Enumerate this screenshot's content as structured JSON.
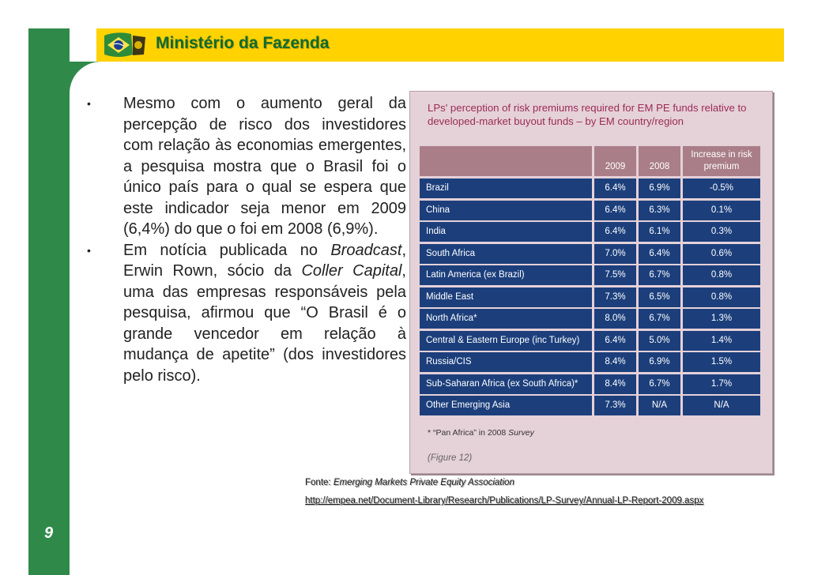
{
  "header": {
    "title": "Ministério da Fazenda"
  },
  "page_number": "9",
  "bullets": [
    {
      "text": "Mesmo com o aumento geral da percepção de risco dos investidores com relação às economias emergentes, a pesquisa mostra que o Brasil foi o único país para o qual se espera que este indicador seja menor em 2009 (6,4%) do que o foi em 2008 (6,9%)."
    },
    {
      "parts": [
        {
          "t": "Em notícia publicada no ",
          "i": false
        },
        {
          "t": "Broadcast",
          "i": true
        },
        {
          "t": ", Erwin Rown, sócio da ",
          "i": false
        },
        {
          "t": "Coller Capital",
          "i": true
        },
        {
          "t": ", uma das empresas responsáveis pela pesquisa, afirmou que “O Brasil é o grande vencedor em relação à mudança de apetite” (dos investidores pelo risco).",
          "i": false
        }
      ]
    }
  ],
  "figure": {
    "title": "LPs' perception of risk premiums required for EM PE funds relative to developed-market buyout funds – by EM country/region",
    "headers": [
      "",
      "2009",
      "2008",
      "Increase in risk premium"
    ],
    "rows": [
      [
        "Brazil",
        "6.4%",
        "6.9%",
        "-0.5%"
      ],
      [
        "China",
        "6.4%",
        "6.3%",
        "0.1%"
      ],
      [
        "India",
        "6.4%",
        "6.1%",
        "0.3%"
      ],
      [
        "South Africa",
        "7.0%",
        "6.4%",
        "0.6%"
      ],
      [
        "Latin America (ex Brazil)",
        "7.5%",
        "6.7%",
        "0.8%"
      ],
      [
        "Middle East",
        "7.3%",
        "6.5%",
        "0.8%"
      ],
      [
        "North Africa*",
        "8.0%",
        "6.7%",
        "1.3%"
      ],
      [
        "Central & Eastern Europe (inc Turkey)",
        "6.4%",
        "5.0%",
        "1.4%"
      ],
      [
        "Russia/CIS",
        "8.4%",
        "6.9%",
        "1.5%"
      ],
      [
        "Sub-Saharan Africa (ex South Africa)*",
        "8.4%",
        "6.7%",
        "1.7%"
      ],
      [
        "Other Emerging Asia",
        "7.3%",
        "N/A",
        "N/A"
      ]
    ],
    "footnote_prefix": "* “Pan Africa” in 2008 ",
    "footnote_italic": "Survey",
    "figure_label": "(Figure 12)"
  },
  "source": {
    "label": "Fonte: ",
    "name": "Emerging Markets Private Equity Association",
    "url": "http://empea.net/Document-Library/Research/Publications/LP-Survey/Annual-LP-Report-2009.aspx"
  },
  "colors": {
    "header_bg": "#ffd200",
    "header_text": "#116a30",
    "band": "#2f8a4a",
    "table_row": "#1c3f7c",
    "table_header": "#a97e89",
    "panel_bg": "#e5d1d8",
    "panel_title": "#9b2c54"
  }
}
